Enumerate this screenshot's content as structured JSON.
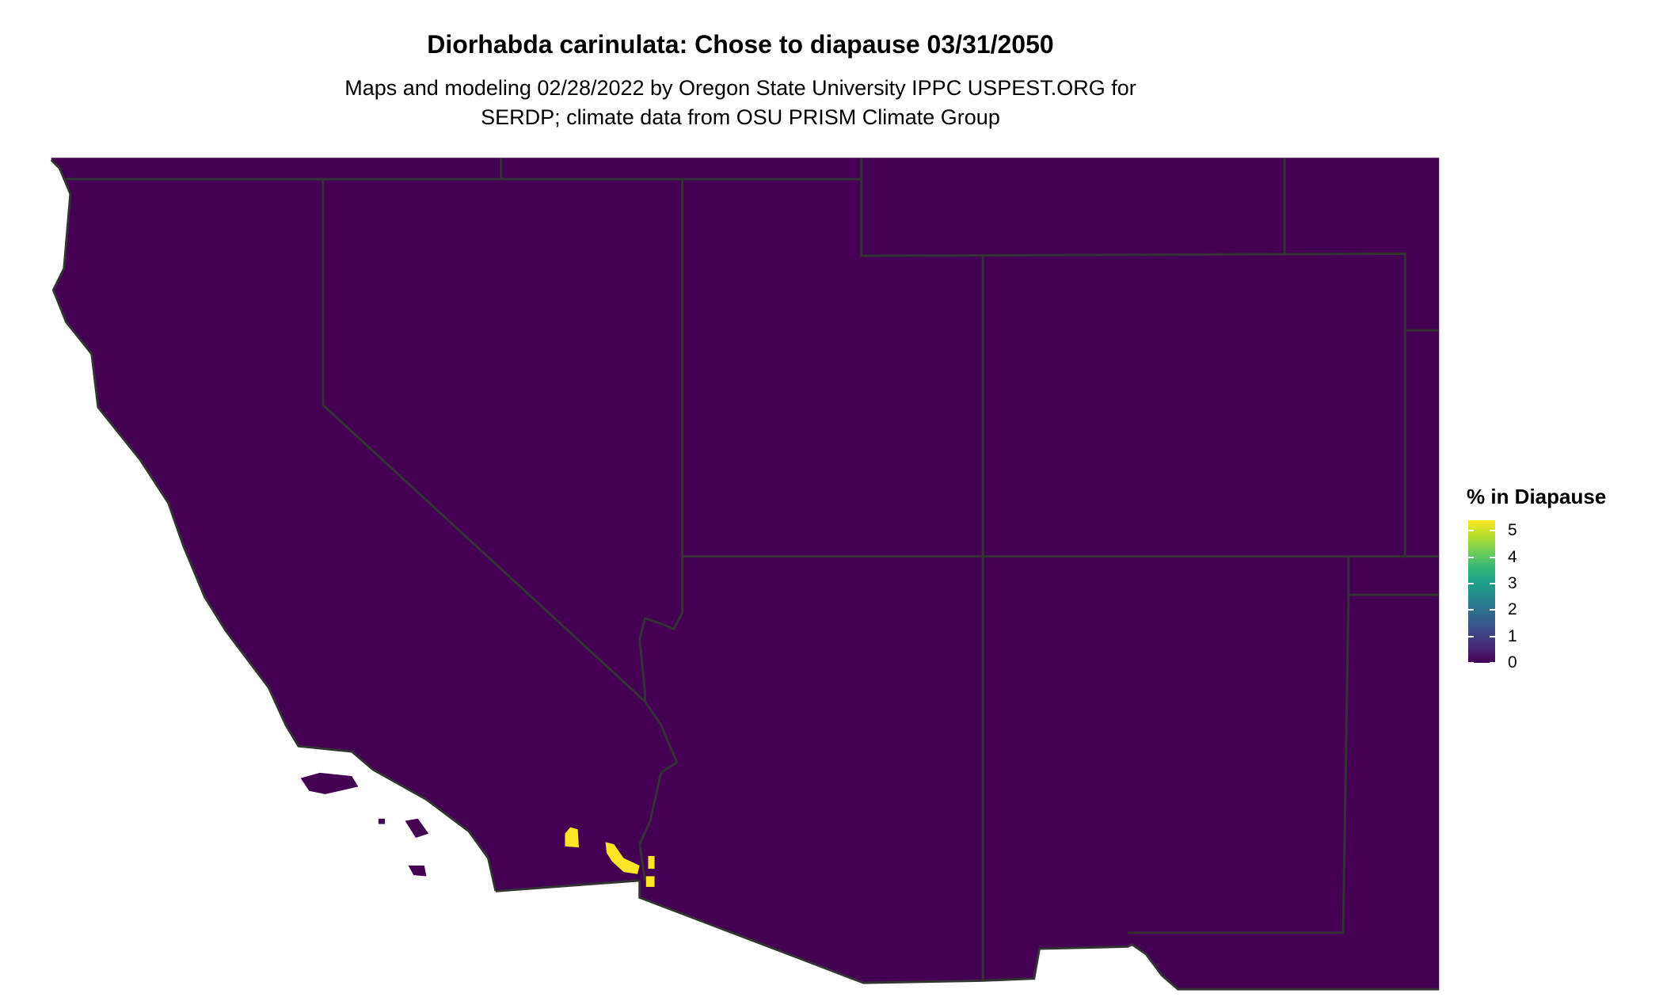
{
  "title": "Diorhabda carinulata: Chose to diapause 03/31/2050",
  "subtitle_line1": "Maps and modeling 02/28/2022 by Oregon State University IPPC USPEST.ORG for",
  "subtitle_line2": "SERDP; climate data from OSU PRISM Climate Group",
  "legend": {
    "title": "% in Diapause",
    "ticks": [
      "0",
      "1",
      "2",
      "3",
      "4",
      "5"
    ],
    "range": [
      0,
      5.4
    ],
    "colormap": "viridis",
    "colors": {
      "low": "#440154",
      "high": "#fde725"
    }
  },
  "map": {
    "background_value_color": "#440154",
    "highlight_color": "#fde725",
    "border_color": "#333333",
    "region": "Southwestern United States"
  }
}
